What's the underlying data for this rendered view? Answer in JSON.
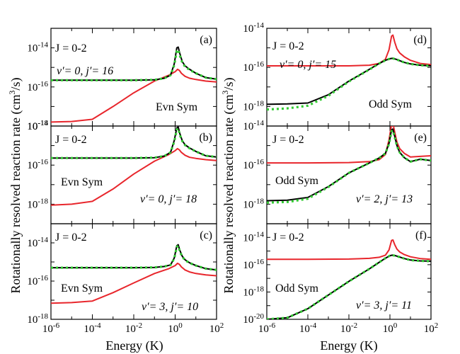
{
  "figure": {
    "xlabel": "Energy (K)",
    "ylabel": "Rotationally resolved reaction rate (cm3/s)",
    "ylabel_parts": [
      "Rotationally resolved reaction rate (cm",
      "3",
      "/s)"
    ],
    "colors": {
      "red": "#e8262c",
      "black": "#000000",
      "green": "#33cc33"
    }
  },
  "chart_data": [
    {
      "type": "line",
      "panel": "(a)",
      "j_label": "J = 0-2",
      "state_v": "v′= 0, ",
      "state_j": "j′= 16",
      "symmetry": "Evn Sym",
      "xscale": "log",
      "yscale": "log",
      "xlim": [
        1e-06,
        100
      ],
      "ylim": [
        1e-18,
        1e-13
      ],
      "ytick_labels": [
        "10-18",
        "10-16",
        "10-14"
      ],
      "xtick_labels": [],
      "series": [
        {
          "name": "red",
          "x": [
            1e-06,
            1e-05,
            0.0001,
            0.001,
            0.01,
            0.1,
            0.5,
            1,
            1.3,
            1.6,
            2,
            3,
            5,
            10,
            30,
            100
          ],
          "y": [
            1.6e-18,
            1.7e-18,
            2.2e-18,
            1e-17,
            5e-17,
            2e-16,
            4e-16,
            6e-16,
            8e-16,
            7e-16,
            5e-16,
            3.5e-16,
            2.8e-16,
            2.4e-16,
            2e-16,
            1.8e-16
          ]
        },
        {
          "name": "black",
          "x": [
            1e-06,
            0.0001,
            0.01,
            0.1,
            0.3,
            0.6,
            0.9,
            1.2,
            1.4,
            1.7,
            2.2,
            3,
            5,
            10,
            30,
            100
          ],
          "y": [
            2.2e-16,
            2.2e-16,
            2.2e-16,
            2.3e-16,
            2.8e-16,
            4e-16,
            1.5e-15,
            1e-14,
            1.1e-14,
            5e-15,
            2e-15,
            1.2e-15,
            8e-16,
            5e-16,
            3e-16,
            2.5e-16
          ]
        },
        {
          "name": "green",
          "x": [
            1e-06,
            0.0001,
            0.01,
            0.1,
            0.3,
            0.6,
            0.9,
            1.2,
            1.4,
            1.7,
            2.2,
            3,
            5,
            10,
            30,
            100
          ],
          "y": [
            2.2e-16,
            2.2e-16,
            2.2e-16,
            2.3e-16,
            2.8e-16,
            4e-16,
            1.3e-15,
            7e-15,
            8e-15,
            4e-15,
            1.8e-15,
            1.1e-15,
            7.5e-16,
            5e-16,
            3e-16,
            2.5e-16
          ]
        }
      ]
    },
    {
      "type": "line",
      "panel": "(b)",
      "j_label": "J = 0-2",
      "state_v": "v′= 0, ",
      "state_j": "j′= 18",
      "symmetry": "Evn Sym",
      "xscale": "log",
      "yscale": "log",
      "xlim": [
        1e-06,
        100
      ],
      "ylim": [
        1e-19,
        1e-14
      ],
      "ytick_labels": [
        "10-18",
        "10-16",
        "10-14"
      ],
      "xtick_labels": [],
      "series": [
        {
          "name": "red",
          "x": [
            1e-06,
            1e-05,
            0.0001,
            0.001,
            0.01,
            0.1,
            0.5,
            1,
            1.3,
            1.6,
            2,
            3,
            5,
            10,
            30,
            100
          ],
          "y": [
            9e-19,
            1e-18,
            1.4e-18,
            6e-18,
            3.5e-17,
            1.6e-16,
            3.5e-16,
            5.5e-16,
            7e-16,
            6e-16,
            4.5e-16,
            3.2e-16,
            2.5e-16,
            2.2e-16,
            1.9e-16,
            1.7e-16
          ]
        },
        {
          "name": "black",
          "x": [
            1e-06,
            0.0001,
            0.01,
            0.1,
            0.3,
            0.6,
            0.9,
            1.2,
            1.4,
            1.7,
            2.2,
            3,
            5,
            10,
            30,
            100
          ],
          "y": [
            2.3e-16,
            2.3e-16,
            2.3e-16,
            2.4e-16,
            2.9e-16,
            4.5e-16,
            1.8e-15,
            8e-15,
            9e-15,
            4e-15,
            1.8e-15,
            1.1e-15,
            7.5e-16,
            5e-16,
            3e-16,
            2.6e-16
          ]
        },
        {
          "name": "green",
          "x": [
            1e-06,
            0.0001,
            0.01,
            0.1,
            0.3,
            0.6,
            0.9,
            1.2,
            1.4,
            1.7,
            2.2,
            3,
            5,
            10,
            30,
            100
          ],
          "y": [
            2.3e-16,
            2.3e-16,
            2.3e-16,
            2.4e-16,
            2.9e-16,
            4.5e-16,
            1.6e-15,
            6.5e-15,
            7.5e-15,
            3.5e-15,
            1.7e-15,
            1.05e-15,
            7.2e-16,
            5e-16,
            3e-16,
            2.6e-16
          ]
        }
      ]
    },
    {
      "type": "line",
      "panel": "(c)",
      "j_label": "J = 0-2",
      "state_v": "v′= 3, ",
      "state_j": "j′= 10",
      "symmetry": "Evn Sym",
      "xscale": "log",
      "yscale": "log",
      "xlim": [
        1e-06,
        100
      ],
      "ylim": [
        1e-18,
        1e-13
      ],
      "ytick_labels": [
        "10-18",
        "10-16",
        "10-14"
      ],
      "xtick_labels": [
        "10-6",
        "10-4",
        "10-2",
        "100",
        "102"
      ],
      "series": [
        {
          "name": "red",
          "x": [
            1e-06,
            1e-05,
            0.0001,
            0.001,
            0.01,
            0.1,
            0.5,
            1,
            1.3,
            1.6,
            2,
            3,
            5,
            10,
            30,
            100
          ],
          "y": [
            7e-18,
            7.5e-18,
            9e-18,
            2.5e-17,
            8e-17,
            2.5e-16,
            4.5e-16,
            6.5e-16,
            8.5e-16,
            7.5e-16,
            5.5e-16,
            3.8e-16,
            3e-16,
            2.5e-16,
            2.1e-16,
            1.9e-16
          ]
        },
        {
          "name": "black",
          "x": [
            1e-06,
            0.0001,
            0.01,
            0.1,
            0.3,
            0.6,
            0.9,
            1.2,
            1.4,
            1.7,
            2.2,
            3,
            5,
            10,
            30,
            100
          ],
          "y": [
            5e-16,
            5e-16,
            5e-16,
            5.2e-16,
            5.8e-16,
            7e-16,
            1.6e-15,
            7e-15,
            8e-15,
            4e-15,
            2e-15,
            1.3e-15,
            9e-16,
            6.5e-16,
            4.5e-16,
            3.8e-16
          ]
        },
        {
          "name": "green",
          "x": [
            1e-06,
            0.0001,
            0.01,
            0.1,
            0.3,
            0.6,
            0.9,
            1.2,
            1.4,
            1.7,
            2.2,
            3,
            5,
            10,
            30,
            100
          ],
          "y": [
            5e-16,
            5e-16,
            5e-16,
            5.2e-16,
            5.8e-16,
            7e-16,
            1.5e-15,
            6e-15,
            7e-15,
            3.5e-15,
            1.9e-15,
            1.25e-15,
            8.8e-16,
            6.5e-16,
            4.5e-16,
            3.8e-16
          ]
        }
      ]
    },
    {
      "type": "line",
      "panel": "(d)",
      "j_label": "J = 0-2",
      "state_v": "v′= 0, ",
      "state_j": "j′= 15",
      "symmetry": "Odd Sym",
      "xscale": "log",
      "yscale": "log",
      "xlim": [
        1e-06,
        100
      ],
      "ylim": [
        1e-19,
        1e-14
      ],
      "ytick_labels": [
        "10-18",
        "10-16",
        "10-14"
      ],
      "xtick_labels": [],
      "series": [
        {
          "name": "red",
          "x": [
            1e-06,
            0.0001,
            0.01,
            0.1,
            0.3,
            0.6,
            0.9,
            1.2,
            1.4,
            1.7,
            2.2,
            3,
            5,
            10,
            30,
            100
          ],
          "y": [
            1.2e-16,
            1.2e-16,
            1.2e-16,
            1.3e-16,
            1.6e-16,
            2.6e-16,
            8e-16,
            4e-15,
            4.5e-15,
            2e-15,
            9e-16,
            5.5e-16,
            3.5e-16,
            2.3e-16,
            1.6e-16,
            1.4e-16
          ]
        },
        {
          "name": "black",
          "x": [
            1e-06,
            1e-05,
            0.0001,
            0.001,
            0.01,
            0.1,
            0.3,
            0.6,
            1,
            1.3,
            2,
            3,
            5,
            10,
            30,
            100
          ],
          "y": [
            1.3e-18,
            1.35e-18,
            1.5e-18,
            4e-18,
            2e-17,
            8e-17,
            1.6e-16,
            2.3e-16,
            2.8e-16,
            2.9e-16,
            2.6e-16,
            2.2e-16,
            1.8e-16,
            1.5e-16,
            1.3e-16,
            1.2e-16
          ]
        },
        {
          "name": "green",
          "x": [
            1e-06,
            1e-05,
            0.0001,
            0.001,
            0.01,
            0.1,
            0.3,
            0.6,
            1,
            1.3,
            2,
            3,
            5,
            10,
            30,
            100
          ],
          "y": [
            7e-19,
            8e-19,
            1.1e-18,
            3.5e-18,
            1.9e-17,
            7.8e-17,
            1.58e-16,
            2.3e-16,
            2.8e-16,
            2.9e-16,
            2.6e-16,
            2.2e-16,
            1.8e-16,
            1.5e-16,
            1.3e-16,
            1.2e-16
          ]
        }
      ]
    },
    {
      "type": "line",
      "panel": "(e)",
      "j_label": "J = 0-2",
      "state_v": "v′= 2, ",
      "state_j": "j′= 13",
      "symmetry": "Odd Sym",
      "xscale": "log",
      "yscale": "log",
      "xlim": [
        1e-06,
        100
      ],
      "ylim": [
        1e-19,
        1e-14
      ],
      "ytick_labels": [
        "10-18",
        "10-16",
        "10-14"
      ],
      "xtick_labels": [],
      "series": [
        {
          "name": "red",
          "x": [
            1e-06,
            0.0001,
            0.01,
            0.1,
            0.3,
            0.6,
            0.9,
            1.2,
            1.4,
            1.7,
            2.2,
            3,
            5,
            10,
            30,
            100
          ],
          "y": [
            1.3e-16,
            1.3e-16,
            1.35e-16,
            1.5e-16,
            1.9e-16,
            3.5e-16,
            2e-15,
            1.2e-14,
            1.4e-14,
            5e-15,
            1.5e-15,
            7e-16,
            4e-16,
            2.6e-16,
            2.8e-16,
            3e-16
          ]
        },
        {
          "name": "black",
          "x": [
            1e-06,
            1e-05,
            0.0001,
            0.001,
            0.01,
            0.1,
            0.3,
            0.6,
            0.9,
            1.2,
            1.4,
            1.7,
            2.2,
            3,
            5,
            10,
            30,
            100
          ],
          "y": [
            1.5e-18,
            1.6e-18,
            2.2e-18,
            8e-18,
            4e-17,
            1.3e-16,
            2.3e-16,
            4e-16,
            1.3e-15,
            6.5e-15,
            7e-15,
            3e-15,
            1e-15,
            4.5e-16,
            2.4e-16,
            1.5e-16,
            2e-16,
            1.7e-16
          ]
        },
        {
          "name": "green",
          "x": [
            1e-06,
            1e-05,
            0.0001,
            0.001,
            0.01,
            0.1,
            0.3,
            0.6,
            0.9,
            1.2,
            1.4,
            1.7,
            2.2,
            3,
            5,
            10,
            30,
            100
          ],
          "y": [
            1.2e-18,
            1.3e-18,
            1.9e-18,
            7.5e-18,
            4e-17,
            1.3e-16,
            2.3e-16,
            4e-16,
            1.2e-15,
            5.5e-15,
            6e-15,
            2.7e-15,
            9.5e-16,
            4.5e-16,
            2.4e-16,
            1.5e-16,
            2e-16,
            1.7e-16
          ]
        }
      ]
    },
    {
      "type": "line",
      "panel": "(f)",
      "j_label": "J = 0-2",
      "state_v": "v′= 3, ",
      "state_j": "j′= 11",
      "symmetry": "Odd Sym",
      "xscale": "log",
      "yscale": "log",
      "xlim": [
        1e-06,
        100
      ],
      "ylim": [
        1e-20,
        1e-13
      ],
      "ytick_labels": [
        "10-20",
        "10-18",
        "10-16",
        "10-14"
      ],
      "xtick_labels": [
        "10-6",
        "10-4",
        "10-2",
        "100",
        "102"
      ],
      "series": [
        {
          "name": "red",
          "x": [
            1e-06,
            0.0001,
            0.01,
            0.1,
            0.3,
            0.6,
            0.9,
            1.2,
            1.4,
            1.7,
            2.2,
            3,
            5,
            10,
            30,
            100
          ],
          "y": [
            2.5e-16,
            2.5e-16,
            2.6e-16,
            2.9e-16,
            3.5e-16,
            5e-16,
            1.2e-15,
            6e-15,
            6.5e-15,
            3e-15,
            1.4e-15,
            8.5e-16,
            5.5e-16,
            3.8e-16,
            2.8e-16,
            2.5e-16
          ]
        },
        {
          "name": "black",
          "x": [
            1e-06,
            1e-05,
            0.0001,
            0.001,
            0.01,
            0.1,
            0.3,
            0.6,
            1,
            1.3,
            2,
            3,
            5,
            10,
            30,
            100
          ],
          "y": [
            1e-20,
            1.3e-20,
            6e-20,
            6e-19,
            6e-18,
            5e-17,
            1.5e-16,
            3e-16,
            4.6e-16,
            5e-16,
            4.4e-16,
            3.6e-16,
            2.8e-16,
            2.2e-16,
            1.9e-16,
            1.8e-16
          ]
        },
        {
          "name": "green",
          "x": [
            1e-06,
            1e-05,
            0.0001,
            0.001,
            0.01,
            0.1,
            0.3,
            0.6,
            1,
            1.3,
            2,
            3,
            5,
            10,
            30,
            100
          ],
          "y": [
            1e-20,
            1.3e-20,
            6e-20,
            6e-19,
            6e-18,
            5e-17,
            1.5e-16,
            3e-16,
            4.6e-16,
            5e-16,
            4.4e-16,
            3.6e-16,
            2.8e-16,
            2.2e-16,
            1.9e-16,
            1.8e-16
          ]
        }
      ]
    }
  ]
}
